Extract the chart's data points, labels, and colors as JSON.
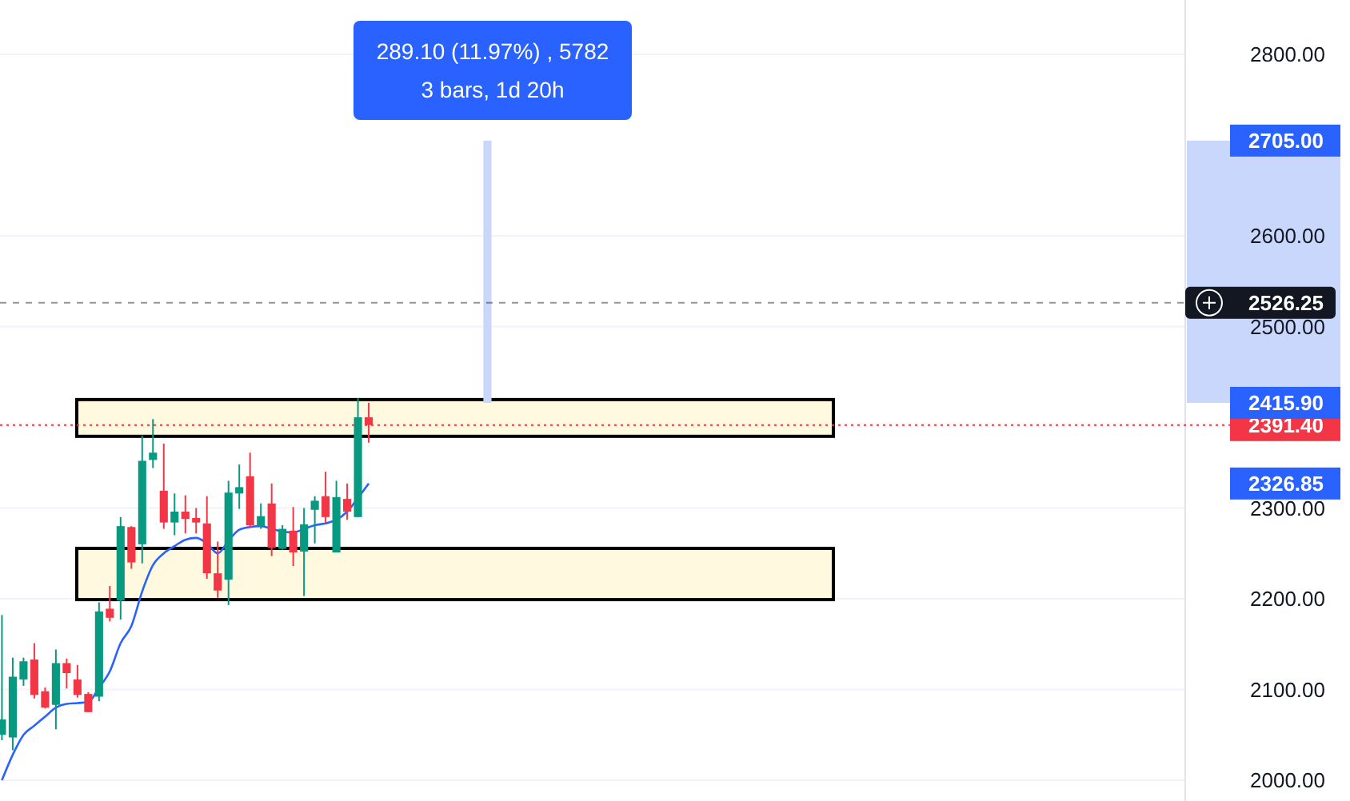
{
  "chart_data": {
    "type": "candlestick",
    "categories": [
      null,
      null,
      null,
      null,
      null,
      null,
      null,
      null,
      null,
      null,
      null,
      null,
      null,
      null,
      null,
      null,
      null,
      null,
      null,
      null,
      null,
      null,
      null,
      null,
      null,
      null,
      null,
      null,
      null,
      null,
      null,
      null,
      null,
      null,
      null,
      null,
      null,
      null,
      null,
      null,
      null,
      null,
      null,
      null,
      null,
      null,
      null,
      null,
      null,
      null,
      null,
      null,
      null,
      null,
      null,
      null,
      null,
      null,
      null,
      null,
      null,
      null,
      null,
      null,
      null,
      null,
      null,
      null,
      null,
      null,
      null,
      null,
      null,
      null,
      null,
      null,
      null,
      null,
      null,
      null,
      null,
      null,
      null,
      null,
      null,
      null,
      null,
      null,
      null,
      null,
      null,
      null,
      null,
      null,
      null,
      null,
      null,
      null,
      null,
      null,
      null,
      null,
      null,
      null,
      null,
      null,
      null,
      null,
      null,
      null
    ],
    "ohlc": [
      [
        2050,
        2182,
        2044,
        2067
      ],
      [
        2047,
        2135,
        2033,
        2114
      ],
      [
        2111,
        2135,
        2104,
        2131
      ],
      [
        2133,
        2151,
        2090,
        2094
      ],
      [
        2098,
        2102,
        2079,
        2080
      ],
      [
        2083,
        2144,
        2056,
        2129
      ],
      [
        2129,
        2134,
        2101,
        2118
      ],
      [
        2111,
        2127,
        2091,
        2094
      ],
      [
        2095,
        2097,
        2075,
        2075
      ],
      [
        2092,
        2196,
        2087,
        2186
      ],
      [
        2189,
        2214,
        2175,
        2179
      ],
      [
        2198,
        2290,
        2177,
        2280
      ],
      [
        2279,
        2280,
        2233,
        2240
      ],
      [
        2260,
        2380,
        2239,
        2352
      ],
      [
        2353,
        2398,
        2344,
        2361
      ],
      [
        2319,
        2371,
        2277,
        2284
      ],
      [
        2284,
        2316,
        2270,
        2296
      ],
      [
        2296,
        2314,
        2272,
        2288
      ],
      [
        2289,
        2300,
        2272,
        2284
      ],
      [
        2283,
        2313,
        2222,
        2228
      ],
      [
        2228,
        2263,
        2201,
        2209
      ],
      [
        2221,
        2330,
        2193,
        2317
      ],
      [
        2316,
        2348,
        2299,
        2323
      ],
      [
        2335,
        2361,
        2278,
        2281
      ],
      [
        2280,
        2305,
        2277,
        2291
      ],
      [
        2305,
        2327,
        2247,
        2256
      ],
      [
        2255,
        2281,
        2254,
        2277
      ],
      [
        2275,
        2301,
        2236,
        2251
      ],
      [
        2252,
        2300,
        2203,
        2282
      ],
      [
        2298,
        2313,
        2261,
        2308
      ],
      [
        2313,
        2340,
        2283,
        2290
      ],
      [
        2251,
        2330,
        2251,
        2312
      ],
      [
        2310,
        2327,
        2287,
        2296
      ],
      [
        2290,
        2421,
        2290,
        2400
      ],
      [
        2400,
        2416,
        2372,
        2391.4
      ],
      null,
      null,
      null,
      null,
      null,
      null,
      null,
      null,
      null,
      null,
      null,
      null,
      null,
      null,
      null,
      null,
      null,
      null,
      null,
      null,
      null,
      null,
      null,
      null,
      null,
      null,
      null,
      null,
      null,
      null,
      null,
      null,
      null,
      null,
      null,
      null,
      null,
      null,
      null,
      null,
      null,
      null,
      null,
      null,
      null,
      null,
      null,
      null,
      null,
      null,
      null,
      null,
      null,
      null,
      null,
      null,
      null,
      null,
      null,
      null,
      null,
      null,
      null,
      null,
      null,
      null,
      null,
      null,
      null,
      null,
      null,
      null,
      null,
      null,
      null
    ],
    "colors": [
      "#089981",
      "#089981",
      "#089981",
      "#f23645",
      "#f23645",
      "#089981",
      "#f23645",
      "#f23645",
      "#f23645",
      "#089981",
      "#f23645",
      "#089981",
      "#f23645",
      "#089981",
      "#089981",
      "#f23645",
      "#089981",
      "#f23645",
      "#f23645",
      "#f23645",
      "#f23645",
      "#089981",
      "#089981",
      "#f23645",
      "#089981",
      "#f23645",
      "#089981",
      "#f23645",
      "#089981",
      "#089981",
      "#f23645",
      "#089981",
      "#f23645",
      "#089981",
      "#f23645",
      null,
      null,
      null,
      null,
      null,
      null,
      null,
      null,
      null,
      null,
      null,
      null,
      null,
      null,
      null,
      null,
      null,
      null,
      null,
      null,
      null,
      null,
      null,
      null,
      null,
      null,
      null,
      null,
      null,
      null,
      null,
      null,
      null,
      null,
      null,
      null,
      null,
      null,
      null,
      null,
      null,
      null,
      null,
      null,
      null,
      null,
      null,
      null,
      null,
      null,
      null,
      null,
      null,
      null,
      null,
      null,
      null,
      null,
      null,
      null,
      null,
      null,
      null,
      null,
      null,
      null,
      null,
      null,
      null,
      null,
      null,
      null,
      null,
      null,
      null
    ],
    "series": [
      {
        "type": "line",
        "color": "#2962ff",
        "values": [
          2000,
          2028,
          2050,
          2060,
          2070,
          2080,
          2084,
          2085,
          2086,
          2102,
          2120,
          2151,
          2170,
          2208,
          2237,
          2250,
          2258,
          2265,
          2267,
          2261,
          2250,
          2264,
          2276,
          2279,
          2280,
          2277,
          2274,
          2273,
          2277,
          2281,
          2283,
          2287,
          2296,
          2311,
          2327,
          null,
          null,
          null,
          null,
          null,
          null,
          null,
          null,
          null,
          null,
          null,
          null,
          null,
          null,
          null,
          null,
          null,
          null,
          null,
          null,
          null,
          null,
          null,
          null,
          null,
          null,
          null,
          null,
          null,
          null,
          null,
          null,
          null,
          null,
          null,
          null,
          null,
          null,
          null,
          null,
          null,
          null,
          null,
          null,
          null,
          null,
          null,
          null,
          null,
          null,
          null,
          null,
          null,
          null,
          null,
          null,
          null,
          null,
          null,
          null,
          null,
          null,
          null,
          null,
          null,
          null,
          null,
          null,
          null,
          null,
          null,
          null,
          null,
          null,
          null
        ]
      },
      {
        "type": "bar",
        "color": "#c8d7fb",
        "values": [
          null,
          null,
          null,
          null,
          null,
          null,
          null,
          null,
          null,
          null,
          null,
          null,
          null,
          null,
          null,
          null,
          null,
          null,
          null,
          null,
          null,
          null,
          null,
          null,
          null,
          null,
          null,
          null,
          null,
          null,
          null,
          null,
          null,
          null,
          null,
          null,
          null,
          null,
          null,
          null,
          null,
          null,
          null,
          null,
          null,
          289.1,
          null,
          null,
          null,
          null,
          null,
          null,
          null,
          null,
          null,
          null,
          null,
          null,
          null,
          null,
          null,
          null,
          null,
          null,
          null,
          null,
          null,
          null,
          null,
          null,
          null,
          null,
          null,
          null,
          null,
          null,
          null,
          null,
          null,
          null,
          null,
          null,
          null,
          null,
          null,
          null,
          null,
          null,
          null,
          null,
          null,
          null,
          null,
          null,
          null,
          null,
          null,
          null,
          null,
          null,
          null,
          null,
          null,
          null,
          null,
          null,
          null,
          null,
          null,
          null
        ],
        "base": [
          null,
          null,
          null,
          null,
          null,
          null,
          null,
          null,
          null,
          null,
          null,
          null,
          null,
          null,
          null,
          null,
          null,
          null,
          null,
          null,
          null,
          null,
          null,
          null,
          null,
          null,
          null,
          null,
          null,
          null,
          null,
          null,
          null,
          null,
          null,
          null,
          null,
          null,
          null,
          null,
          null,
          null,
          null,
          null,
          null,
          2415.9,
          null,
          null,
          null,
          null,
          null,
          null,
          null,
          null,
          null,
          null,
          null,
          null,
          null,
          null,
          null,
          null,
          null,
          null,
          null,
          null,
          null,
          null,
          null,
          null,
          null,
          null,
          null,
          null,
          null,
          null,
          null,
          null,
          null,
          null,
          null,
          null,
          null,
          null,
          null,
          null,
          null,
          null,
          null,
          null,
          null,
          null,
          null,
          null,
          null,
          null,
          null,
          null,
          null,
          null,
          null,
          null,
          null,
          null,
          null,
          null,
          null,
          null,
          null,
          null
        ]
      }
    ],
    "ylim": [
      1977,
      2860
    ],
    "yticks": [
      {
        "value": 2000,
        "label": "2000.00"
      },
      {
        "value": 2100,
        "label": "2100.00"
      },
      {
        "value": 2200,
        "label": "2200.00"
      },
      {
        "value": 2300,
        "label": "2300.00"
      },
      {
        "value": 2500,
        "label": "2500.00"
      },
      {
        "value": 2600,
        "label": "2600.00"
      },
      {
        "value": 2800,
        "label": "2800.00"
      }
    ],
    "grid": "y",
    "bands": [
      {
        "axis": "y",
        "from": 2379,
        "to": 2419.5,
        "color": "#fff9e0"
      },
      {
        "axis": "y",
        "from": 2199,
        "to": 2255.5,
        "color": "#fff9e0"
      }
    ],
    "ref_lines": [
      {
        "axis": "y",
        "value": 2526.25,
        "label": "2526.25",
        "color": "#131722",
        "line_style": "dashed"
      },
      {
        "axis": "y",
        "value": 2391.4,
        "label": "2391.40",
        "color": "#f23645",
        "line_style": "dotted"
      }
    ],
    "annotations": [
      "289.10 (11.97%) , 5782",
      "3 bars, 1d 20h",
      "2705.00",
      "2415.90",
      "2326.85"
    ]
  }
}
